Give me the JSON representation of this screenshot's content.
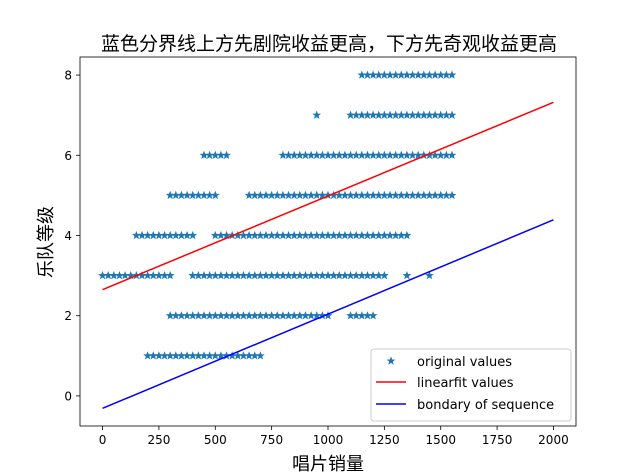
{
  "chart_data": {
    "type": "scatter",
    "title": "蓝色分界线上方先剧院收益更高，下方先奇观收益更高",
    "xlabel": "唱片销量",
    "ylabel": "乐队等级",
    "xlim": [
      -100,
      2100
    ],
    "ylim": [
      -0.75,
      8.45
    ],
    "xticks": [
      0,
      250,
      500,
      750,
      1000,
      1250,
      1500,
      1750,
      2000
    ],
    "yticks": [
      0,
      2,
      4,
      6,
      8
    ],
    "grid": false,
    "legend_position": "lower-right",
    "series": [
      {
        "name": "original values",
        "kind": "points",
        "marker": "star",
        "color": "#1f77b4",
        "rows": [
          {
            "y": 1,
            "ranges": [
              [
                200,
                700,
                25
              ]
            ]
          },
          {
            "y": 2,
            "ranges": [
              [
                300,
                1000,
                25
              ],
              [
                1100,
                1200,
                25
              ]
            ]
          },
          {
            "y": 3,
            "ranges": [
              [
                0,
                300,
                25
              ],
              [
                400,
                1250,
                25
              ],
              [
                1350,
                1350,
                25
              ],
              [
                1450,
                1450,
                25
              ]
            ]
          },
          {
            "y": 4,
            "ranges": [
              [
                150,
                400,
                25
              ],
              [
                500,
                1350,
                25
              ]
            ]
          },
          {
            "y": 5,
            "ranges": [
              [
                300,
                500,
                25
              ],
              [
                650,
                1550,
                25
              ]
            ]
          },
          {
            "y": 6,
            "ranges": [
              [
                450,
                550,
                25
              ],
              [
                800,
                1550,
                25
              ]
            ]
          },
          {
            "y": 7,
            "ranges": [
              [
                950,
                950,
                25
              ],
              [
                1100,
                1550,
                25
              ]
            ]
          },
          {
            "y": 8,
            "ranges": [
              [
                1150,
                1550,
                25
              ]
            ]
          }
        ]
      },
      {
        "name": "linearfit values",
        "kind": "line",
        "color": "#ff0000",
        "x": [
          0,
          2000
        ],
        "y": [
          2.65,
          7.32
        ]
      },
      {
        "name": "bondary of sequence",
        "kind": "line",
        "color": "#0000ff",
        "x": [
          0,
          2000
        ],
        "y": [
          -0.31,
          4.39
        ]
      }
    ]
  }
}
